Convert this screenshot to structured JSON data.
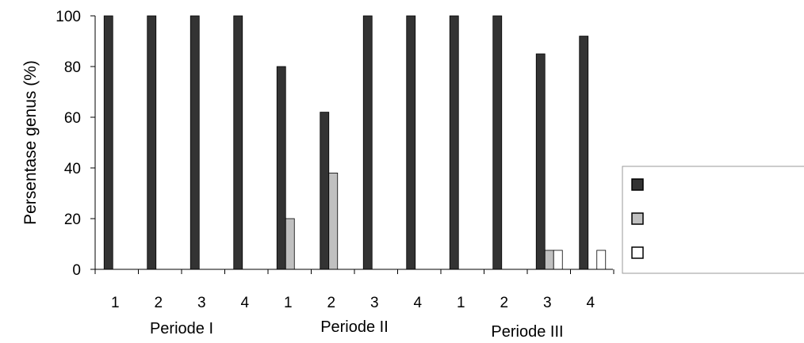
{
  "chart_data": {
    "type": "bar",
    "ylabel": "Persentase genus (%)",
    "ylim": [
      0,
      100
    ],
    "yticks": [
      0,
      20,
      40,
      60,
      80,
      100
    ],
    "grid": false,
    "legend_position": "right",
    "categories": [
      "1",
      "2",
      "3",
      "4",
      "1",
      "2",
      "3",
      "4",
      "1",
      "2",
      "3",
      "4"
    ],
    "groups": [
      "Periode I",
      "Periode II",
      "Periode III"
    ],
    "series": [
      {
        "color": "#333333",
        "values": [
          100,
          100,
          100,
          100,
          80,
          62,
          100,
          100,
          100,
          100,
          85,
          92
        ]
      },
      {
        "color": "#c0c0c0",
        "values": [
          0,
          0,
          0,
          0,
          20,
          38,
          0,
          0,
          0,
          0,
          7.5,
          0
        ]
      },
      {
        "color": "#ffffff",
        "values": [
          0,
          0,
          0,
          0,
          0,
          0,
          0,
          0,
          0,
          0,
          7.5,
          7.5
        ]
      }
    ]
  }
}
